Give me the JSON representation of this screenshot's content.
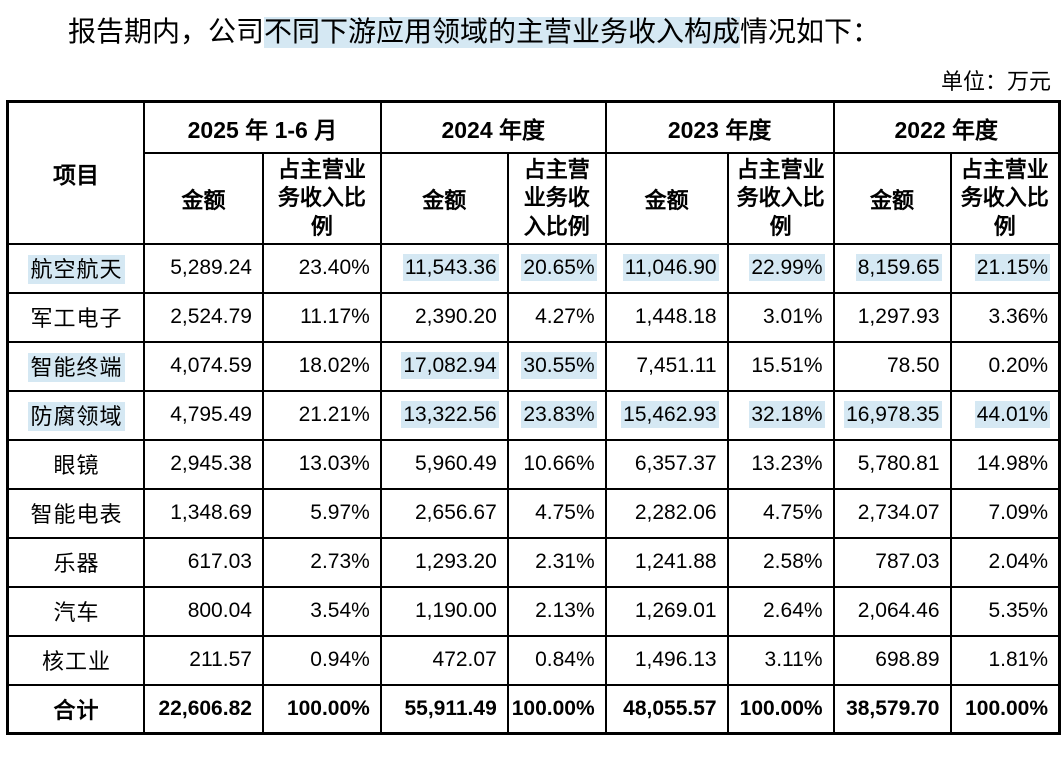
{
  "title": {
    "prefix": "报告期内，公司",
    "highlighted": "不同下游应用领域的主营业务收入构成",
    "suffix": "情况如下："
  },
  "unit_note": "单位：万元",
  "highlight_color": "#d5e8f3",
  "table": {
    "item_header": "项目",
    "amount_header": "金额",
    "periods": [
      "2025 年 1-6 月",
      "2024 年度",
      "2023 年度",
      "2022 年度"
    ],
    "ratio_headers": [
      "占主营业\n务收入比\n例",
      "占主营\n业务收\n入比例",
      "占主营业\n务收入比\n例",
      "占主营业\n务收入比\n例"
    ],
    "rows": [
      {
        "label": "航空航天",
        "label_hl": true,
        "total": false,
        "cells": [
          {
            "v": "5,289.24",
            "hl": false
          },
          {
            "v": "23.40%",
            "hl": false
          },
          {
            "v": "11,543.36",
            "hl": true
          },
          {
            "v": "20.65%",
            "hl": true
          },
          {
            "v": "11,046.90",
            "hl": true
          },
          {
            "v": "22.99%",
            "hl": true
          },
          {
            "v": "8,159.65",
            "hl": true
          },
          {
            "v": "21.15%",
            "hl": true
          }
        ]
      },
      {
        "label": "军工电子",
        "label_hl": false,
        "total": false,
        "cells": [
          {
            "v": "2,524.79",
            "hl": false
          },
          {
            "v": "11.17%",
            "hl": false
          },
          {
            "v": "2,390.20",
            "hl": false
          },
          {
            "v": "4.27%",
            "hl": false
          },
          {
            "v": "1,448.18",
            "hl": false
          },
          {
            "v": "3.01%",
            "hl": false
          },
          {
            "v": "1,297.93",
            "hl": false
          },
          {
            "v": "3.36%",
            "hl": false
          }
        ]
      },
      {
        "label": "智能终端",
        "label_hl": true,
        "total": false,
        "cells": [
          {
            "v": "4,074.59",
            "hl": false
          },
          {
            "v": "18.02%",
            "hl": false
          },
          {
            "v": "17,082.94",
            "hl": true
          },
          {
            "v": "30.55%",
            "hl": true
          },
          {
            "v": "7,451.11",
            "hl": false
          },
          {
            "v": "15.51%",
            "hl": false
          },
          {
            "v": "78.50",
            "hl": false
          },
          {
            "v": "0.20%",
            "hl": false
          }
        ]
      },
      {
        "label": "防腐领域",
        "label_hl": true,
        "total": false,
        "cells": [
          {
            "v": "4,795.49",
            "hl": false
          },
          {
            "v": "21.21%",
            "hl": false
          },
          {
            "v": "13,322.56",
            "hl": true
          },
          {
            "v": "23.83%",
            "hl": true
          },
          {
            "v": "15,462.93",
            "hl": true
          },
          {
            "v": "32.18%",
            "hl": true
          },
          {
            "v": "16,978.35",
            "hl": true
          },
          {
            "v": "44.01%",
            "hl": true
          }
        ]
      },
      {
        "label": "眼镜",
        "label_hl": false,
        "total": false,
        "cells": [
          {
            "v": "2,945.38",
            "hl": false
          },
          {
            "v": "13.03%",
            "hl": false
          },
          {
            "v": "5,960.49",
            "hl": false
          },
          {
            "v": "10.66%",
            "hl": false
          },
          {
            "v": "6,357.37",
            "hl": false
          },
          {
            "v": "13.23%",
            "hl": false
          },
          {
            "v": "5,780.81",
            "hl": false
          },
          {
            "v": "14.98%",
            "hl": false
          }
        ]
      },
      {
        "label": "智能电表",
        "label_hl": false,
        "total": false,
        "cells": [
          {
            "v": "1,348.69",
            "hl": false
          },
          {
            "v": "5.97%",
            "hl": false
          },
          {
            "v": "2,656.67",
            "hl": false
          },
          {
            "v": "4.75%",
            "hl": false
          },
          {
            "v": "2,282.06",
            "hl": false
          },
          {
            "v": "4.75%",
            "hl": false
          },
          {
            "v": "2,734.07",
            "hl": false
          },
          {
            "v": "7.09%",
            "hl": false
          }
        ]
      },
      {
        "label": "乐器",
        "label_hl": false,
        "total": false,
        "cells": [
          {
            "v": "617.03",
            "hl": false
          },
          {
            "v": "2.73%",
            "hl": false
          },
          {
            "v": "1,293.20",
            "hl": false
          },
          {
            "v": "2.31%",
            "hl": false
          },
          {
            "v": "1,241.88",
            "hl": false
          },
          {
            "v": "2.58%",
            "hl": false
          },
          {
            "v": "787.03",
            "hl": false
          },
          {
            "v": "2.04%",
            "hl": false
          }
        ]
      },
      {
        "label": "汽车",
        "label_hl": false,
        "total": false,
        "cells": [
          {
            "v": "800.04",
            "hl": false
          },
          {
            "v": "3.54%",
            "hl": false
          },
          {
            "v": "1,190.00",
            "hl": false
          },
          {
            "v": "2.13%",
            "hl": false
          },
          {
            "v": "1,269.01",
            "hl": false
          },
          {
            "v": "2.64%",
            "hl": false
          },
          {
            "v": "2,064.46",
            "hl": false
          },
          {
            "v": "5.35%",
            "hl": false
          }
        ]
      },
      {
        "label": "核工业",
        "label_hl": false,
        "total": false,
        "cells": [
          {
            "v": "211.57",
            "hl": false
          },
          {
            "v": "0.94%",
            "hl": false
          },
          {
            "v": "472.07",
            "hl": false
          },
          {
            "v": "0.84%",
            "hl": false
          },
          {
            "v": "1,496.13",
            "hl": false
          },
          {
            "v": "3.11%",
            "hl": false
          },
          {
            "v": "698.89",
            "hl": false
          },
          {
            "v": "1.81%",
            "hl": false
          }
        ]
      },
      {
        "label": "合计",
        "label_hl": false,
        "total": true,
        "cells": [
          {
            "v": "22,606.82",
            "hl": false
          },
          {
            "v": "100.00%",
            "hl": false
          },
          {
            "v": "55,911.49",
            "hl": false
          },
          {
            "v": "100.00%",
            "hl": false
          },
          {
            "v": "48,055.57",
            "hl": false
          },
          {
            "v": "100.00%",
            "hl": false
          },
          {
            "v": "38,579.70",
            "hl": false
          },
          {
            "v": "100.00%",
            "hl": false
          }
        ]
      }
    ]
  }
}
